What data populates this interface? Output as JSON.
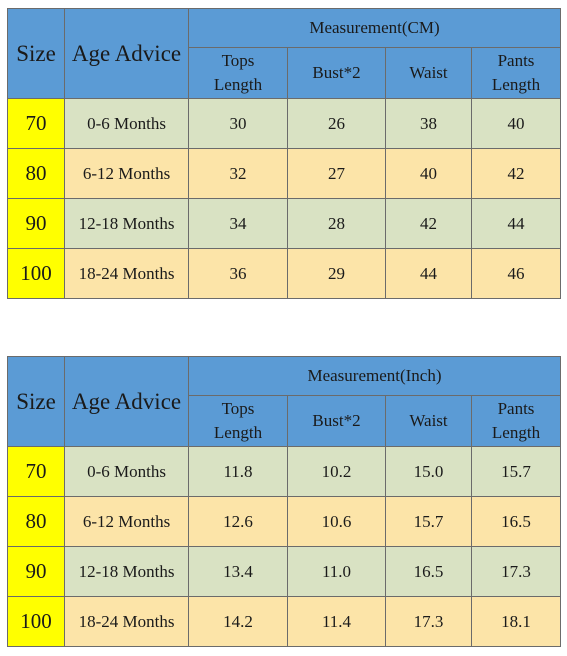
{
  "cm_table": {
    "size_header": "Size",
    "age_header": "Age Advice",
    "measurement_header": "Measurement(CM)",
    "columns": [
      {
        "line1": "Tops",
        "line2": "Length"
      },
      {
        "line1": "Bust*2",
        "line2": ""
      },
      {
        "line1": "Waist",
        "line2": ""
      },
      {
        "line1": "Pants",
        "line2": "Length"
      }
    ],
    "rows": [
      {
        "size": "70",
        "age": "0-6 Months",
        "values": [
          "30",
          "26",
          "38",
          "40"
        ]
      },
      {
        "size": "80",
        "age": "6-12 Months",
        "values": [
          "32",
          "27",
          "40",
          "42"
        ]
      },
      {
        "size": "90",
        "age": "12-18 Months",
        "values": [
          "34",
          "28",
          "42",
          "44"
        ]
      },
      {
        "size": "100",
        "age": "18-24 Months",
        "values": [
          "36",
          "29",
          "44",
          "46"
        ]
      }
    ]
  },
  "inch_table": {
    "size_header": "Size",
    "age_header": "Age Advice",
    "measurement_header": "Measurement(Inch)",
    "columns": [
      {
        "line1": "Tops",
        "line2": "Length"
      },
      {
        "line1": "Bust*2",
        "line2": ""
      },
      {
        "line1": "Waist",
        "line2": ""
      },
      {
        "line1": "Pants",
        "line2": "Length"
      }
    ],
    "rows": [
      {
        "size": "70",
        "age": "0-6 Months",
        "values": [
          "11.8",
          "10.2",
          "15.0",
          "15.7"
        ]
      },
      {
        "size": "80",
        "age": "6-12 Months",
        "values": [
          "12.6",
          "10.6",
          "15.7",
          "16.5"
        ]
      },
      {
        "size": "90",
        "age": "12-18 Months",
        "values": [
          "13.4",
          "11.0",
          "16.5",
          "17.3"
        ]
      },
      {
        "size": "100",
        "age": "18-24 Months",
        "values": [
          "14.2",
          "11.4",
          "17.3",
          "18.1"
        ]
      }
    ]
  },
  "colors": {
    "header_blue": "#5b9bd5",
    "size_yellow": "#ffff00",
    "row_green": "#d9e2c3",
    "row_peach": "#fce4a8"
  }
}
